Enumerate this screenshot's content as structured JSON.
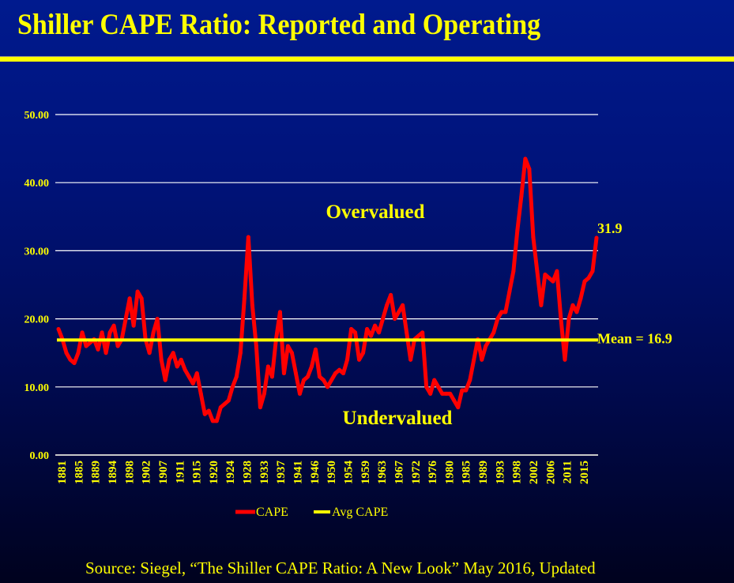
{
  "title": "Shiller CAPE Ratio: Reported and Operating",
  "source": "Source:  Siegel, “The Shiller CAPE Ratio:  A New Look” May 2016, Updated",
  "chart_data": {
    "type": "line",
    "title": "Shiller CAPE Ratio: Reported and Operating",
    "xlabel": "",
    "ylabel": "",
    "ylim": [
      0,
      50
    ],
    "xlim": [
      1881,
      2017
    ],
    "yticks": [
      "0.00",
      "10.00",
      "20.00",
      "30.00",
      "40.00",
      "50.00"
    ],
    "xticks": [
      "1881",
      "1885",
      "1889",
      "1894",
      "1898",
      "1902",
      "1907",
      "1911",
      "1915",
      "1920",
      "1924",
      "1928",
      "1933",
      "1937",
      "1941",
      "1946",
      "1950",
      "1954",
      "1959",
      "1963",
      "1967",
      "1972",
      "1976",
      "1980",
      "1985",
      "1989",
      "1993",
      "1998",
      "2002",
      "2006",
      "2011",
      "2015"
    ],
    "grid": true,
    "legend": {
      "position": "bottom",
      "entries": [
        "CAPE",
        "Avg CAPE"
      ]
    },
    "annotations": {
      "over": "Overvalued",
      "under": "Undervalued",
      "mean": "Mean = 16.9",
      "last": "31.9"
    },
    "colors": {
      "cape": "#ff0000",
      "avg": "#ffff00"
    },
    "series": [
      {
        "name": "CAPE",
        "x": [
          1881,
          1882,
          1883,
          1884,
          1885,
          1886,
          1887,
          1888,
          1889,
          1890,
          1891,
          1892,
          1893,
          1894,
          1895,
          1896,
          1897,
          1898,
          1899,
          1900,
          1901,
          1902,
          1903,
          1904,
          1905,
          1906,
          1907,
          1908,
          1909,
          1910,
          1911,
          1912,
          1913,
          1914,
          1915,
          1916,
          1917,
          1918,
          1919,
          1920,
          1921,
          1922,
          1923,
          1924,
          1925,
          1926,
          1927,
          1928,
          1929,
          1930,
          1931,
          1932,
          1933,
          1934,
          1935,
          1936,
          1937,
          1938,
          1939,
          1940,
          1941,
          1942,
          1943,
          1944,
          1945,
          1946,
          1947,
          1948,
          1949,
          1950,
          1951,
          1952,
          1953,
          1954,
          1955,
          1956,
          1957,
          1958,
          1959,
          1960,
          1961,
          1962,
          1963,
          1964,
          1965,
          1966,
          1967,
          1968,
          1969,
          1970,
          1971,
          1972,
          1973,
          1974,
          1975,
          1976,
          1977,
          1978,
          1979,
          1980,
          1981,
          1982,
          1983,
          1984,
          1985,
          1986,
          1987,
          1988,
          1989,
          1990,
          1991,
          1992,
          1993,
          1994,
          1995,
          1996,
          1997,
          1998,
          1999,
          2000,
          2001,
          2002,
          2003,
          2004,
          2005,
          2006,
          2007,
          2008,
          2009,
          2010,
          2011,
          2012,
          2013,
          2014,
          2015,
          2016,
          2017
        ],
        "values": [
          18.5,
          17,
          15,
          14,
          13.5,
          15,
          18,
          16,
          16.5,
          17,
          15.5,
          18,
          15,
          18,
          19,
          16,
          17,
          20,
          23,
          19,
          24,
          23,
          17,
          15,
          18,
          20,
          14,
          11,
          14,
          15,
          13,
          14,
          12.5,
          11.5,
          10.5,
          12,
          9,
          6,
          6.5,
          5,
          5,
          7,
          7.5,
          8,
          10,
          11.5,
          15,
          23,
          32,
          22,
          16,
          7,
          9,
          13,
          11.5,
          17,
          21,
          12,
          16,
          15,
          12,
          9,
          11,
          11.5,
          13,
          15.5,
          11.5,
          11,
          10,
          11,
          12,
          12.5,
          12,
          14,
          18.5,
          18,
          14,
          15,
          18.5,
          17.5,
          19,
          18,
          20,
          22,
          23.5,
          20,
          21,
          22,
          18,
          14,
          17,
          17.5,
          18,
          10,
          9,
          11,
          10,
          9,
          9,
          9,
          8,
          7,
          9.5,
          9.5,
          11,
          14,
          17,
          14,
          16,
          17,
          18,
          20,
          21,
          21,
          24,
          27,
          33,
          38,
          43.5,
          42,
          32,
          27,
          22,
          26.5,
          26,
          25.5,
          27,
          20,
          14,
          20,
          22,
          21,
          23,
          25.5,
          26,
          27,
          31.9
        ]
      },
      {
        "name": "Avg CAPE",
        "value": 16.9
      }
    ]
  }
}
